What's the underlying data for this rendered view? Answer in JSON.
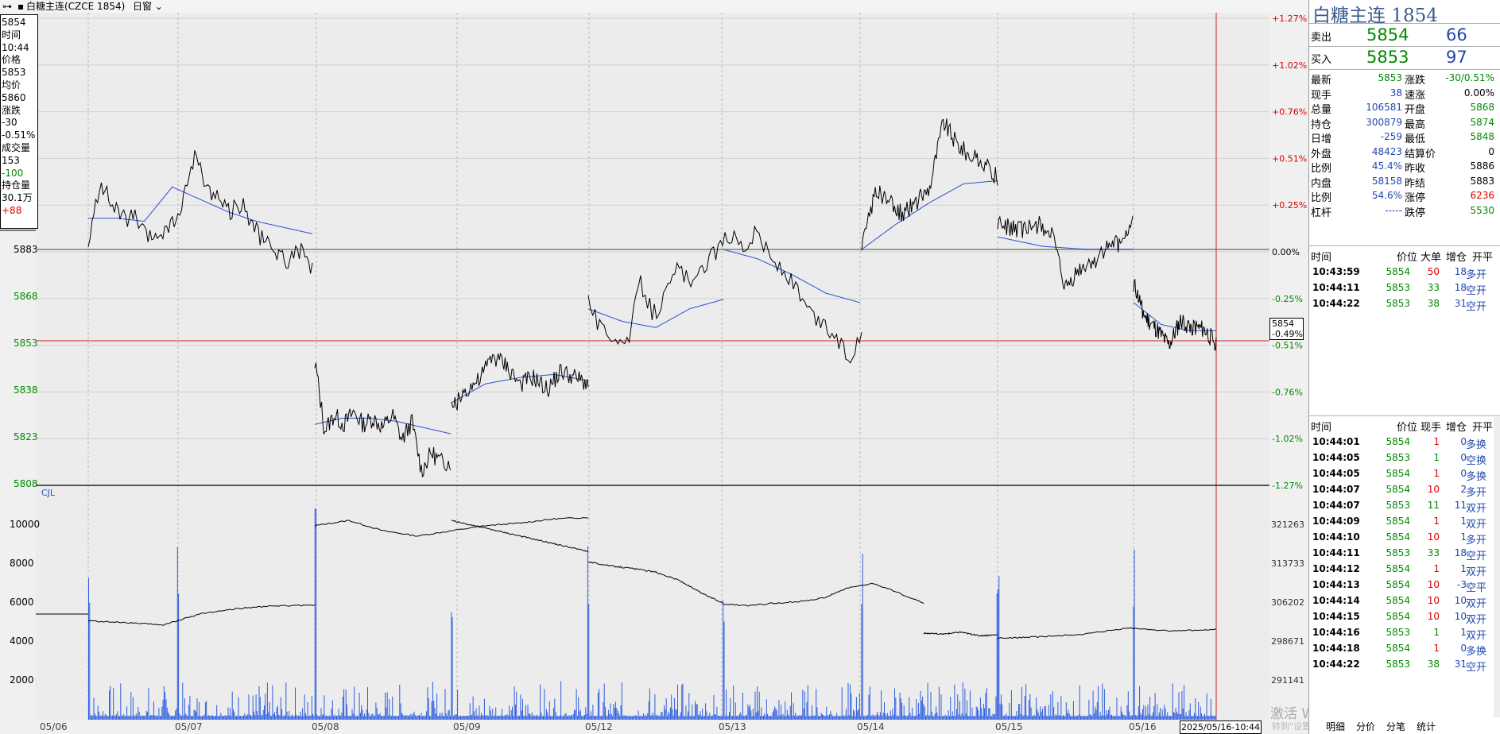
{
  "topbar": {
    "title": "白糖主连(CZCE 1854)",
    "window_mode": "日窗"
  },
  "infobox": [
    "5854",
    "时间",
    "10:44",
    "价格",
    "5853",
    "均价",
    "5860",
    "涨跌",
    "-30",
    "-0.51%",
    "成交量",
    "153",
    "-100",
    "持仓量",
    "30.1万",
    "+88"
  ],
  "pricetag": {
    "price": "5854",
    "pct": "-0.49%"
  },
  "timestamp": "2025/05/16-10:44",
  "watermark": "激活 Windows",
  "watermark_sub": "转到\"设置\"以激活 Windows。",
  "panel": {
    "title": "白糖主连  1854",
    "sell": {
      "label": "卖出",
      "price": "5854",
      "volume": "66"
    },
    "buy": {
      "label": "买入",
      "price": "5853",
      "volume": "97"
    },
    "stats_left": [
      {
        "label": "最新",
        "value": "5853",
        "color": "green"
      },
      {
        "label": "现手",
        "value": "38",
        "color": "blue"
      },
      {
        "label": "总量",
        "value": "106581",
        "color": "blue"
      },
      {
        "label": "持仓",
        "value": "300879",
        "color": "blue"
      },
      {
        "label": "日增",
        "value": "-259",
        "color": "blue"
      },
      {
        "label": "外盘",
        "value": "48423",
        "color": "blue"
      },
      {
        "label": "比例",
        "value": "45.4%",
        "color": "blue"
      },
      {
        "label": "内盘",
        "value": "58158",
        "color": "blue"
      },
      {
        "label": "比例",
        "value": "54.6%",
        "color": "blue"
      },
      {
        "label": "杠杆",
        "value": "-----",
        "color": "blue"
      }
    ],
    "stats_right": [
      {
        "label": "涨跌",
        "value": "-30/0.51%",
        "color": "green"
      },
      {
        "label": "速涨",
        "value": "0.00%",
        "color": "black"
      },
      {
        "label": "开盘",
        "value": "5868",
        "color": "green"
      },
      {
        "label": "最高",
        "value": "5874",
        "color": "green"
      },
      {
        "label": "最低",
        "value": "5848",
        "color": "green"
      },
      {
        "label": "结算价",
        "value": "0",
        "color": "black"
      },
      {
        "label": "昨收",
        "value": "5886",
        "color": "black"
      },
      {
        "label": "昨结",
        "value": "5883",
        "color": "black"
      },
      {
        "label": "涨停",
        "value": "6236",
        "color": "red"
      },
      {
        "label": "跌停",
        "value": "5530",
        "color": "green"
      }
    ],
    "big_orders_header": [
      "时间",
      "价位",
      "大单",
      "增仓",
      "开平"
    ],
    "big_orders": [
      {
        "time": "10:43:59",
        "price": "5854",
        "size": "50",
        "oi": "18",
        "type": "多开",
        "price_color": "green",
        "size_color": "red",
        "type_color": "blue"
      },
      {
        "time": "10:44:11",
        "price": "5853",
        "size": "33",
        "oi": "18",
        "type": "空开",
        "price_color": "green",
        "size_color": "green",
        "type_color": "blue"
      },
      {
        "time": "10:44:22",
        "price": "5853",
        "size": "38",
        "oi": "31",
        "type": "空开",
        "price_color": "green",
        "size_color": "green",
        "type_color": "blue"
      }
    ],
    "ticks_header": [
      "时间",
      "价位",
      "现手",
      "增仓",
      "开平"
    ],
    "ticks": [
      {
        "time": "10:44:01",
        "price": "5854",
        "size": "1",
        "oi": "0",
        "type": "多换",
        "size_color": "red"
      },
      {
        "time": "10:44:05",
        "price": "5853",
        "size": "1",
        "oi": "0",
        "type": "空换",
        "size_color": "green"
      },
      {
        "time": "10:44:05",
        "price": "5854",
        "size": "1",
        "oi": "0",
        "type": "多换",
        "size_color": "red"
      },
      {
        "time": "10:44:07",
        "price": "5854",
        "size": "10",
        "oi": "2",
        "type": "多开",
        "size_color": "red"
      },
      {
        "time": "10:44:07",
        "price": "5853",
        "size": "11",
        "oi": "11",
        "type": "双开",
        "size_color": "green"
      },
      {
        "time": "10:44:09",
        "price": "5854",
        "size": "1",
        "oi": "1",
        "type": "双开",
        "size_color": "red"
      },
      {
        "time": "10:44:10",
        "price": "5854",
        "size": "10",
        "oi": "1",
        "type": "多开",
        "size_color": "red"
      },
      {
        "time": "10:44:11",
        "price": "5853",
        "size": "33",
        "oi": "18",
        "type": "空开",
        "size_color": "green"
      },
      {
        "time": "10:44:12",
        "price": "5854",
        "size": "1",
        "oi": "1",
        "type": "双开",
        "size_color": "red"
      },
      {
        "time": "10:44:13",
        "price": "5854",
        "size": "10",
        "oi": "-3",
        "type": "空平",
        "size_color": "red"
      },
      {
        "time": "10:44:14",
        "price": "5854",
        "size": "10",
        "oi": "10",
        "type": "双开",
        "size_color": "red"
      },
      {
        "time": "10:44:15",
        "price": "5854",
        "size": "10",
        "oi": "10",
        "type": "双开",
        "size_color": "red"
      },
      {
        "time": "10:44:16",
        "price": "5853",
        "size": "1",
        "oi": "1",
        "type": "双开",
        "size_color": "green"
      },
      {
        "time": "10:44:18",
        "price": "5854",
        "size": "1",
        "oi": "0",
        "type": "多换",
        "size_color": "red"
      },
      {
        "time": "10:44:22",
        "price": "5853",
        "size": "38",
        "oi": "31",
        "type": "空开",
        "size_color": "green"
      }
    ],
    "tabs": [
      "明细",
      "分价",
      "分笔",
      "统计"
    ]
  },
  "chart_data": {
    "type": "line",
    "x_dates": [
      "05/06",
      "05/07",
      "05/08",
      "05/09",
      "05/12",
      "05/13",
      "05/14",
      "05/15",
      "05/16"
    ],
    "price_axis": {
      "ticks": [
        "5883",
        "5868",
        "5853",
        "5838",
        "5823",
        "5808"
      ],
      "ylim": [
        5808,
        5958
      ]
    },
    "pct_axis": {
      "ticks": [
        "+1.27%",
        "+1.02%",
        "+0.76%",
        "+0.51%",
        "+0.25%",
        "0.00%",
        "-0.25%",
        "-0.51%",
        "-0.76%",
        "-1.02%",
        "-1.27%"
      ]
    },
    "reference_price": 5883,
    "current_price": 5853,
    "volume_axis": {
      "ticks": [
        "10000",
        "8000",
        "6000",
        "4000",
        "2000"
      ],
      "label": "CJL"
    },
    "oi_axis": {
      "ticks": [
        "321263",
        "313733",
        "306202",
        "298671",
        "291141"
      ]
    },
    "price_series": [
      {
        "day": "05/07",
        "points": [
          5883,
          5905,
          5897,
          5893,
          5893,
          5886,
          5888,
          5890,
          5897,
          5914,
          5903,
          5900,
          5895,
          5898,
          5890,
          5885,
          5882,
          5879,
          5883,
          5876
        ]
      },
      {
        "day": "05/08",
        "points": [
          5848,
          5825,
          5830,
          5827,
          5831,
          5827,
          5829,
          5826,
          5830,
          5822,
          5828,
          5812,
          5818,
          5815,
          5815
        ]
      },
      {
        "day": "05/09",
        "points": [
          5832,
          5838,
          5841,
          5849,
          5846,
          5840,
          5842,
          5838,
          5844,
          5842,
          5840
        ]
      },
      {
        "day": "05/12",
        "points": [
          5867,
          5857,
          5856,
          5852,
          5873,
          5862,
          5869,
          5878,
          5870,
          5879,
          5883,
          5888,
          5884,
          5889,
          5880,
          5876,
          5870,
          5862,
          5859,
          5855,
          5848,
          5856
        ]
      },
      {
        "day": "05/14",
        "points": [
          5883,
          5902,
          5898,
          5894,
          5898,
          5903,
          5924,
          5917,
          5913,
          5910,
          5906
        ]
      },
      {
        "day": "05/15",
        "points": [
          5891,
          5890,
          5889,
          5891,
          5888,
          5870,
          5876,
          5879,
          5883,
          5885,
          5891
        ]
      },
      {
        "day": "05/16",
        "points": [
          5872,
          5861,
          5857,
          5852,
          5860,
          5858,
          5857,
          5853
        ]
      }
    ],
    "avg_series": [
      {
        "day": "05/07",
        "points": [
          5893,
          5893,
          5892,
          5903,
          5899,
          5895,
          5892,
          5890,
          5888
        ]
      },
      {
        "day": "05/08",
        "points": [
          5827,
          5829,
          5829,
          5828,
          5826,
          5824
        ]
      },
      {
        "day": "05/09",
        "points": [
          5834,
          5840,
          5842,
          5843,
          5841
        ]
      },
      {
        "day": "05/12",
        "points": [
          5864,
          5860,
          5858,
          5864,
          5867
        ]
      },
      {
        "day": "05/13",
        "points": [
          5883,
          5880,
          5875,
          5869,
          5866
        ]
      },
      {
        "day": "05/14",
        "points": [
          5883,
          5891,
          5898,
          5904,
          5905
        ]
      },
      {
        "day": "05/15",
        "points": [
          5887,
          5884,
          5883,
          5883
        ]
      },
      {
        "day": "05/16",
        "points": [
          5866,
          5859,
          5857,
          5857
        ]
      }
    ],
    "oi_series": [
      {
        "day": "05/07",
        "points": [
          302600,
          302200,
          301800,
          304000,
          305000,
          305500,
          305600
        ]
      },
      {
        "day": "05/08",
        "points": [
          321000,
          322000,
          320000,
          319000,
          320000,
          321000,
          321500,
          322300,
          322600
        ]
      },
      {
        "day": "05/09",
        "points": [
          322000,
          320000,
          318000,
          316000
        ]
      },
      {
        "day": "05/12",
        "points": [
          314000,
          313200,
          312700,
          312000,
          310500,
          308000,
          306000
        ]
      },
      {
        "day": "05/13",
        "points": [
          305800,
          305500,
          306000,
          306300,
          307000,
          309000,
          309800,
          308000,
          306000
        ]
      },
      {
        "day": "05/14",
        "points": [
          300200,
          300000,
          300400,
          299700,
          299900
        ]
      },
      {
        "day": "05/15",
        "points": [
          299200,
          299500,
          300000,
          301200,
          300600,
          300900
        ]
      }
    ]
  }
}
